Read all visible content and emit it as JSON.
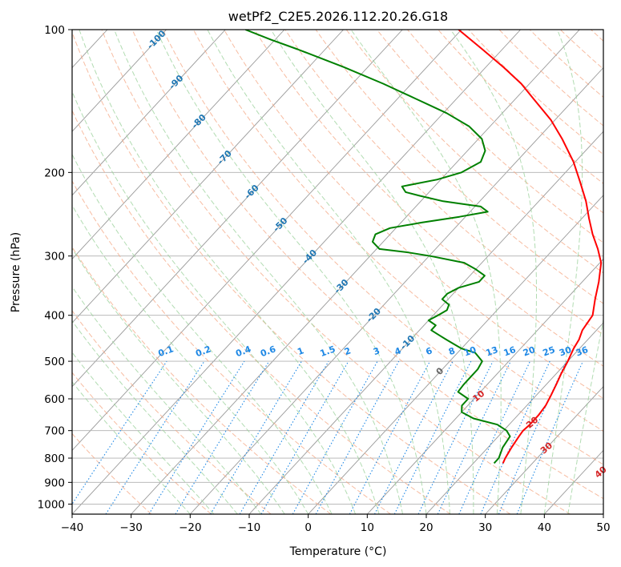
{
  "chart_data": {
    "type": "line",
    "title": "wetPf2_C2E5.2026.112.20.26.G18",
    "xlabel": "Temperature (°C)",
    "ylabel": "Pressure (hPa)",
    "xlim": [
      -40,
      50
    ],
    "ylim": [
      1050,
      100
    ],
    "y_scale": "log",
    "x_ticks": [
      -40,
      -30,
      -20,
      -10,
      0,
      10,
      20,
      30,
      40,
      50
    ],
    "y_ticks": [
      100,
      200,
      300,
      400,
      500,
      600,
      700,
      800,
      900,
      1000
    ],
    "grid": true,
    "colors": {
      "temperature": "#ff0000",
      "dewpoint": "#008000",
      "isotherm": "#999999",
      "dry_adiabat": "#f4a582",
      "moist_adiabat": "#9fd39f",
      "mixing_ratio": "#1e88e5",
      "isotherm_label": "#1f77b4",
      "moist_label": "#d62728"
    },
    "series": [
      {
        "key": "temperature",
        "pressure": [
          820,
          800,
          760,
          720,
          700,
          680,
          650,
          620,
          590,
          560,
          530,
          500,
          470,
          450,
          430,
          400,
          370,
          340,
          310,
          290,
          270,
          250,
          230,
          210,
          190,
          170,
          155,
          140,
          130,
          120,
          110,
          100
        ],
        "values": [
          25,
          24.6,
          24,
          23.5,
          23.3,
          23.5,
          23.5,
          23.2,
          22.5,
          21.7,
          20.8,
          20,
          19,
          18.5,
          17.6,
          17,
          14.9,
          12.8,
          10.2,
          7.5,
          4.3,
          1.2,
          -2,
          -5.9,
          -10.3,
          -15.8,
          -20.7,
          -26.9,
          -31.4,
          -37,
          -43.4,
          -50.5
        ]
      },
      {
        "key": "dewpoint",
        "pressure": [
          820,
          800,
          760,
          720,
          700,
          680,
          660,
          640,
          620,
          600,
          580,
          560,
          540,
          520,
          500,
          480,
          470,
          460,
          450,
          440,
          430,
          420,
          410,
          400,
          390,
          380,
          370,
          360,
          350,
          340,
          330,
          320,
          310,
          300,
          295,
          290,
          280,
          270,
          262,
          255,
          248,
          242,
          236,
          230,
          224,
          220,
          214,
          207,
          200,
          190,
          180,
          170,
          160,
          150,
          140,
          130,
          120,
          110,
          105,
          100
        ],
        "values": [
          23.5,
          23.5,
          22.5,
          22,
          20.5,
          18,
          13,
          10,
          9,
          9,
          6.2,
          6,
          6,
          6,
          5.5,
          3,
          0,
          -2,
          -4,
          -6,
          -8,
          -8,
          -10,
          -9.2,
          -8.5,
          -9,
          -11,
          -11,
          -10,
          -7.5,
          -7.5,
          -10,
          -13,
          -19.8,
          -24,
          -29.5,
          -31.8,
          -32.5,
          -31,
          -26.5,
          -21,
          -17,
          -19,
          -26.2,
          -31,
          -34,
          -35.5,
          -30.6,
          -27.6,
          -26,
          -27,
          -29.4,
          -33.5,
          -39.4,
          -46.8,
          -54.8,
          -64,
          -74.7,
          -80.7,
          -86.6
        ]
      }
    ],
    "mixing_ratio_labels": [
      "0.1",
      "0.2",
      "0.4",
      "0.6",
      "1",
      "1.5",
      "2",
      "3",
      "4",
      "6",
      "8",
      "10",
      "13",
      "16",
      "20",
      "25",
      "30",
      "36"
    ],
    "isotherm_labels": [
      "-100",
      "-90",
      "-80",
      "-70",
      "-60",
      "-50",
      "-40",
      "-30",
      "-20",
      "-10",
      "0"
    ],
    "moist_adiabat_labels": [
      "10",
      "20",
      "30",
      "40"
    ]
  }
}
